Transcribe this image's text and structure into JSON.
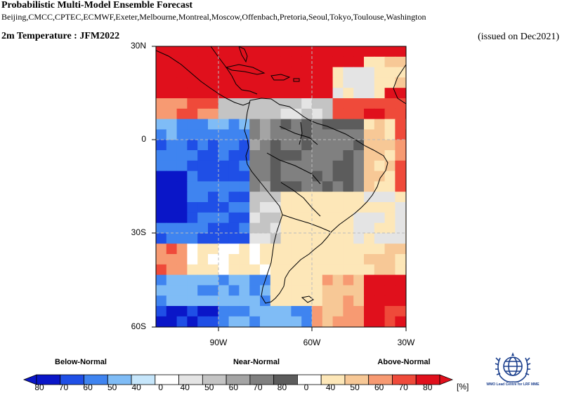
{
  "header": {
    "title": "Probabilistic Multi-Model Ensemble Forecast",
    "models": "Beijing,CMCC,CPTEC,ECMWF,Exeter,Melbourne,Montreal,Moscow,Offenbach,Pretoria,Seoul,Tokyo,Toulouse,Washington",
    "variable": "2m Temperature : JFM2022",
    "issued": "(issued on Dec2021)"
  },
  "map": {
    "lat_labels": [
      "30N",
      "0",
      "30S",
      "60S"
    ],
    "lon_labels": [
      "90W",
      "60W",
      "30W"
    ],
    "lon_range": [
      -110,
      -30
    ],
    "lat_range": [
      -60,
      30
    ],
    "gridlines": true
  },
  "legend": {
    "categories": [
      "Below-Normal",
      "Near-Normal",
      "Above-Normal"
    ],
    "ticks": [
      "80",
      "70",
      "60",
      "50",
      "40",
      "0",
      "40",
      "50",
      "60",
      "70",
      "80",
      "0",
      "40",
      "50",
      "60",
      "70",
      "80"
    ],
    "unit": "[%]",
    "colors": {
      "below": [
        "#0a16c8",
        "#1f4fe6",
        "#3f84f0",
        "#7fbcf6",
        "#c6e6fb"
      ],
      "near": [
        "#ffffff",
        "#e4e4e4",
        "#c4c4c4",
        "#a4a4a4",
        "#808080",
        "#5c5c5c"
      ],
      "above": [
        "#ffffff",
        "#fde7b8",
        "#f7c896",
        "#f79a72",
        "#ef4a3a",
        "#e0101c"
      ]
    }
  },
  "logo": {
    "text": "WMO Lead Centre for LRF MME"
  }
}
